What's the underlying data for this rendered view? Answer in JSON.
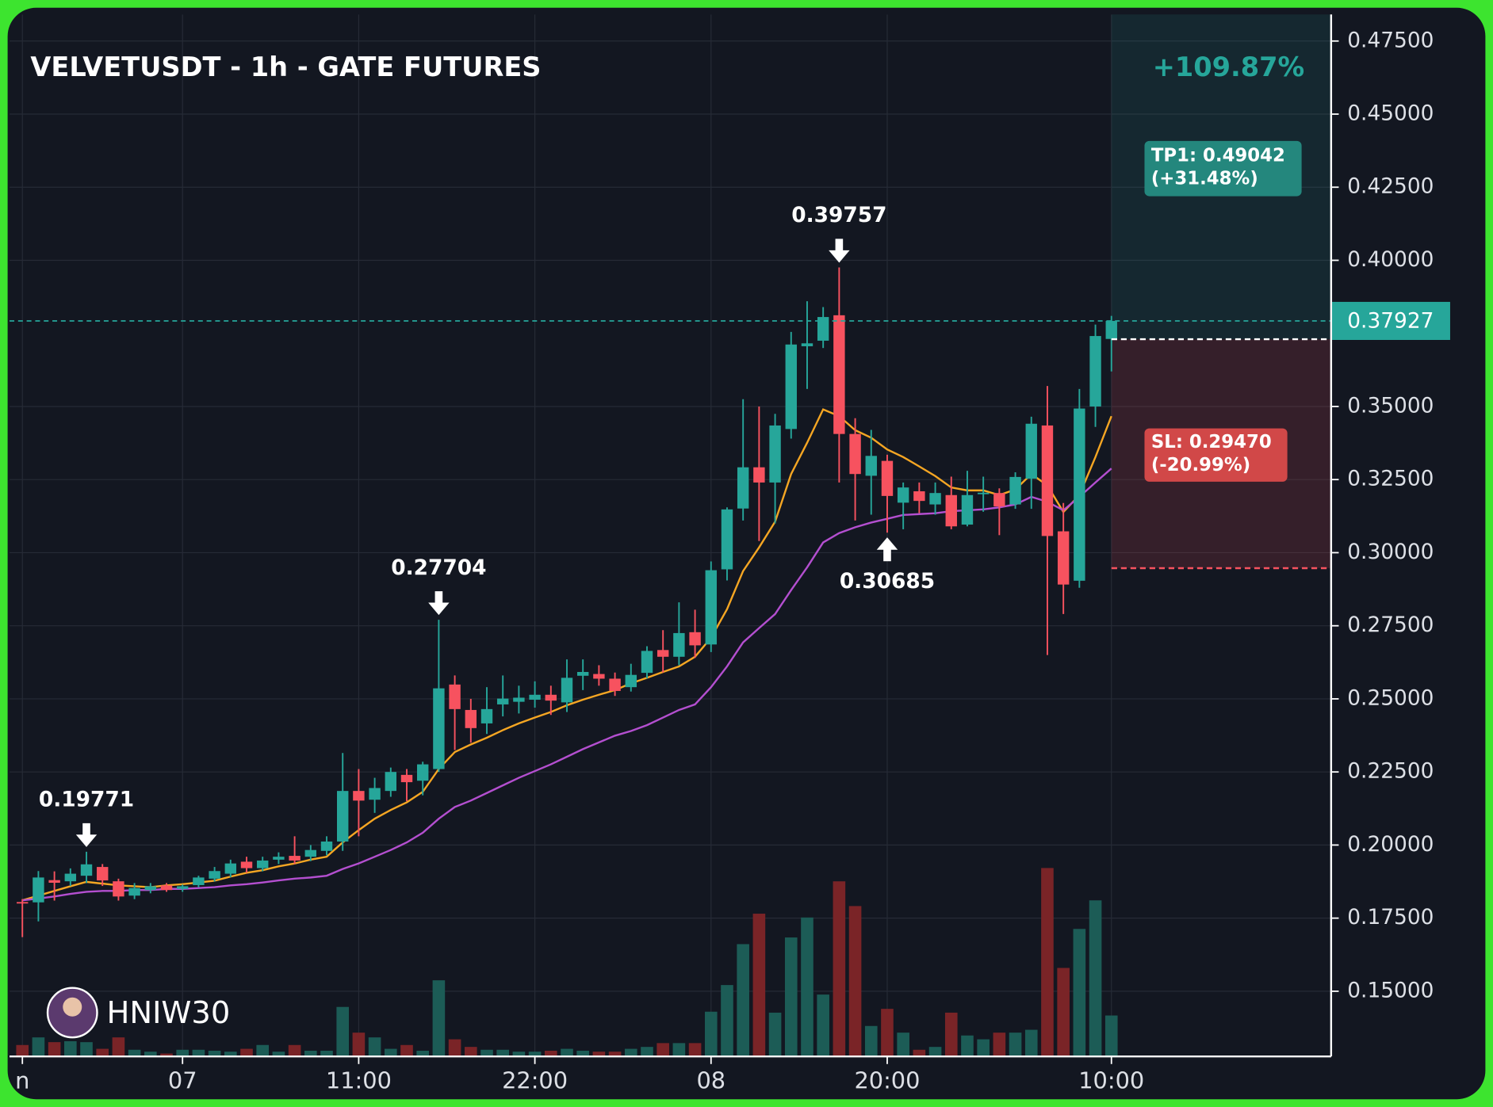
{
  "chart_data": {
    "type": "candlestick",
    "title": "VELVETUSDT - 1h - GATE FUTURES",
    "performance": "+109.87%",
    "watermark": "HNIW30",
    "categories": [
      "n",
      null,
      null,
      null,
      null,
      null,
      null,
      null,
      null,
      null,
      "07",
      null,
      null,
      null,
      null,
      null,
      null,
      null,
      null,
      null,
      null,
      "11:00",
      null,
      null,
      null,
      null,
      null,
      null,
      null,
      null,
      null,
      null,
      "22:00",
      null,
      null,
      null,
      null,
      null,
      null,
      null,
      null,
      null,
      null,
      "08",
      null,
      null,
      null,
      null,
      null,
      null,
      null,
      null,
      null,
      null,
      "20:00",
      null,
      null,
      null,
      null,
      null,
      null,
      null,
      null,
      null,
      null,
      null,
      null,
      null,
      "10:00"
    ],
    "open": [
      0.1805,
      0.1804,
      0.188,
      0.1876,
      0.1895,
      0.1925,
      0.1876,
      0.1827,
      0.1846,
      0.1862,
      0.185,
      0.1863,
      0.1885,
      0.1902,
      0.1943,
      0.1921,
      0.195,
      0.1963,
      0.196,
      0.198,
      0.2012,
      0.2185,
      0.2155,
      0.2185,
      0.224,
      0.222,
      0.226,
      0.2549,
      0.2462,
      0.2416,
      0.2481,
      0.249,
      0.2497,
      0.2514,
      0.2488,
      0.2579,
      0.2585,
      0.2569,
      0.254,
      0.2589,
      0.2667,
      0.2644,
      0.2728,
      0.2686,
      0.2943,
      0.3151,
      0.3292,
      0.324,
      0.3423,
      0.3706,
      0.3725,
      0.3812,
      0.3406,
      0.3263,
      0.3314,
      0.3171,
      0.321,
      0.3165,
      0.3197,
      0.3096,
      0.32,
      0.3204,
      0.3165,
      0.3253,
      0.3435,
      0.3073,
      0.2904,
      0.35,
      0.3731
    ],
    "high": [
      0.1815,
      0.1911,
      0.191,
      0.192,
      0.19771,
      0.1935,
      0.1885,
      0.187,
      0.187,
      0.187,
      0.1865,
      0.1895,
      0.1925,
      0.195,
      0.196,
      0.196,
      0.1975,
      0.203,
      0.2,
      0.203,
      0.2315,
      0.226,
      0.223,
      0.2265,
      0.226,
      0.2285,
      0.27704,
      0.258,
      0.25,
      0.254,
      0.258,
      0.2545,
      0.256,
      0.2545,
      0.2635,
      0.2635,
      0.2615,
      0.259,
      0.262,
      0.268,
      0.2735,
      0.283,
      0.2805,
      0.297,
      0.3155,
      0.3525,
      0.35,
      0.3475,
      0.3755,
      0.386,
      0.384,
      0.39757,
      0.346,
      0.342,
      0.3335,
      0.324,
      0.324,
      0.324,
      0.326,
      0.328,
      0.326,
      0.322,
      0.3275,
      0.3465,
      0.357,
      0.317,
      0.356,
      0.378,
      0.381
    ],
    "low": [
      0.1685,
      0.1739,
      0.181,
      0.186,
      0.187,
      0.186,
      0.181,
      0.1815,
      0.1835,
      0.184,
      0.184,
      0.1855,
      0.1875,
      0.189,
      0.1905,
      0.191,
      0.1935,
      0.1935,
      0.1945,
      0.1965,
      0.198,
      0.203,
      0.211,
      0.2165,
      0.215,
      0.217,
      0.225,
      0.2325,
      0.235,
      0.238,
      0.244,
      0.245,
      0.247,
      0.2445,
      0.2455,
      0.253,
      0.2545,
      0.251,
      0.2525,
      0.257,
      0.259,
      0.2615,
      0.264,
      0.266,
      0.2905,
      0.311,
      0.304,
      0.31,
      0.339,
      0.356,
      0.37,
      0.324,
      0.311,
      0.313,
      0.30685,
      0.308,
      0.3135,
      0.313,
      0.308,
      0.309,
      0.314,
      0.306,
      0.315,
      0.315,
      0.265,
      0.279,
      0.288,
      0.343,
      0.362
    ],
    "close": [
      0.18,
      0.1889,
      0.1871,
      0.1902,
      0.1934,
      0.1879,
      0.1824,
      0.1853,
      0.1859,
      0.1846,
      0.1859,
      0.1889,
      0.1911,
      0.1937,
      0.1921,
      0.1947,
      0.196,
      0.1947,
      0.1983,
      0.2012,
      0.2185,
      0.2152,
      0.2195,
      0.225,
      0.2215,
      0.2276,
      0.2536,
      0.2465,
      0.24,
      0.2465,
      0.2501,
      0.2504,
      0.2514,
      0.2494,
      0.2572,
      0.2592,
      0.2569,
      0.2527,
      0.2582,
      0.2664,
      0.2644,
      0.2725,
      0.2683,
      0.294,
      0.3148,
      0.3292,
      0.324,
      0.3435,
      0.3712,
      0.3716,
      0.3806,
      0.3406,
      0.3269,
      0.3331,
      0.3194,
      0.3223,
      0.3177,
      0.3204,
      0.309,
      0.3197,
      0.3205,
      0.3158,
      0.3259,
      0.3441,
      0.3057,
      0.2891,
      0.3493,
      0.3741,
      0.37927
    ],
    "volume": [
      12,
      20,
      15,
      16,
      15,
      8,
      20,
      7,
      5,
      3,
      7,
      7,
      6,
      5,
      8,
      12,
      5,
      12,
      6,
      6,
      52,
      25,
      20,
      8,
      12,
      6,
      80,
      18,
      10,
      7,
      7,
      5,
      5,
      6,
      8,
      6,
      5,
      5,
      8,
      10,
      14,
      14,
      14,
      47,
      75,
      118,
      150,
      46,
      125,
      146,
      65,
      184,
      158,
      32,
      50,
      25,
      7,
      10,
      46,
      22,
      18,
      25,
      25,
      28,
      198,
      93,
      134,
      164,
      43
    ],
    "lines": [
      {
        "color": "#f5a623",
        "values": [
          0.1811,
          0.1827,
          0.1843,
          0.1859,
          0.1874,
          0.1868,
          0.1862,
          0.1859,
          0.1856,
          0.1862,
          0.1866,
          0.1872,
          0.1878,
          0.1892,
          0.1905,
          0.1914,
          0.1927,
          0.1937,
          0.195,
          0.196,
          0.2009,
          0.2051,
          0.209,
          0.212,
          0.2146,
          0.2182,
          0.226,
          0.2318,
          0.2344,
          0.2367,
          0.2393,
          0.2416,
          0.2436,
          0.2455,
          0.2478,
          0.2497,
          0.2514,
          0.253,
          0.2553,
          0.2572,
          0.2592,
          0.2611,
          0.2644,
          0.2709,
          0.2807,
          0.2937,
          0.3018,
          0.3106,
          0.3269,
          0.3376,
          0.349,
          0.3467,
          0.3419,
          0.3393,
          0.3353,
          0.3327,
          0.3295,
          0.3262,
          0.3223,
          0.3213,
          0.3213,
          0.3197,
          0.3216,
          0.3269,
          0.323,
          0.3139,
          0.3197,
          0.3327,
          0.3467
        ]
      },
      {
        "color": "#b44fd0",
        "values": [
          0.1811,
          0.1817,
          0.1824,
          0.1833,
          0.184,
          0.1843,
          0.1843,
          0.1846,
          0.1846,
          0.185,
          0.185,
          0.1853,
          0.1856,
          0.1862,
          0.1866,
          0.1872,
          0.1879,
          0.1885,
          0.1889,
          0.1895,
          0.1918,
          0.1937,
          0.196,
          0.1983,
          0.2009,
          0.2042,
          0.209,
          0.213,
          0.2152,
          0.2178,
          0.2204,
          0.223,
          0.2253,
          0.2276,
          0.2302,
          0.2328,
          0.2351,
          0.2374,
          0.239,
          0.241,
          0.2436,
          0.2462,
          0.2481,
          0.254,
          0.2611,
          0.2693,
          0.2742,
          0.279,
          0.2872,
          0.295,
          0.3035,
          0.3067,
          0.3087,
          0.3103,
          0.3116,
          0.3129,
          0.3132,
          0.3135,
          0.3142,
          0.3145,
          0.3148,
          0.3155,
          0.3165,
          0.3191,
          0.3174,
          0.3145,
          0.3191,
          0.324,
          0.3288
        ]
      }
    ],
    "up_color": "#26a69a",
    "down_color": "#f7525f",
    "volume_up_color": "#1c5c56",
    "volume_down_color": "#7a2427",
    "last_price": 0.37927,
    "entry": 0.373,
    "tp": {
      "value": 0.49042,
      "label": "TP1: 0.49042",
      "change": "(+31.48%)"
    },
    "sl": {
      "value": 0.2947,
      "label": "SL: 0.29470",
      "change": "(-20.99%)"
    },
    "annotations": [
      {
        "label": "0.19771",
        "value": 0.19771,
        "at": 4,
        "side": "high"
      },
      {
        "label": "0.27704",
        "value": 0.27704,
        "at": 26,
        "side": "high"
      },
      {
        "label": "0.39757",
        "value": 0.39757,
        "at": 51,
        "side": "high"
      },
      {
        "label": "0.30685",
        "value": 0.30685,
        "at": 54,
        "side": "low"
      }
    ],
    "ylim": [
      0.1277,
      0.4841
    ],
    "yticks": [
      {
        "value": 0.475,
        "label": "0.47500"
      },
      {
        "value": 0.45,
        "label": "0.45000"
      },
      {
        "value": 0.425,
        "label": "0.42500"
      },
      {
        "value": 0.4,
        "label": "0.40000"
      },
      {
        "value": 0.35,
        "label": "0.35000"
      },
      {
        "value": 0.325,
        "label": "0.32500"
      },
      {
        "value": 0.3,
        "label": "0.30000"
      },
      {
        "value": 0.275,
        "label": "0.27500"
      },
      {
        "value": 0.25,
        "label": "0.25000"
      },
      {
        "value": 0.225,
        "label": "0.22500"
      },
      {
        "value": 0.2,
        "label": "0.20000"
      },
      {
        "value": 0.175,
        "label": "0.17500"
      },
      {
        "value": 0.15,
        "label": "0.15000"
      }
    ],
    "grid": true
  }
}
